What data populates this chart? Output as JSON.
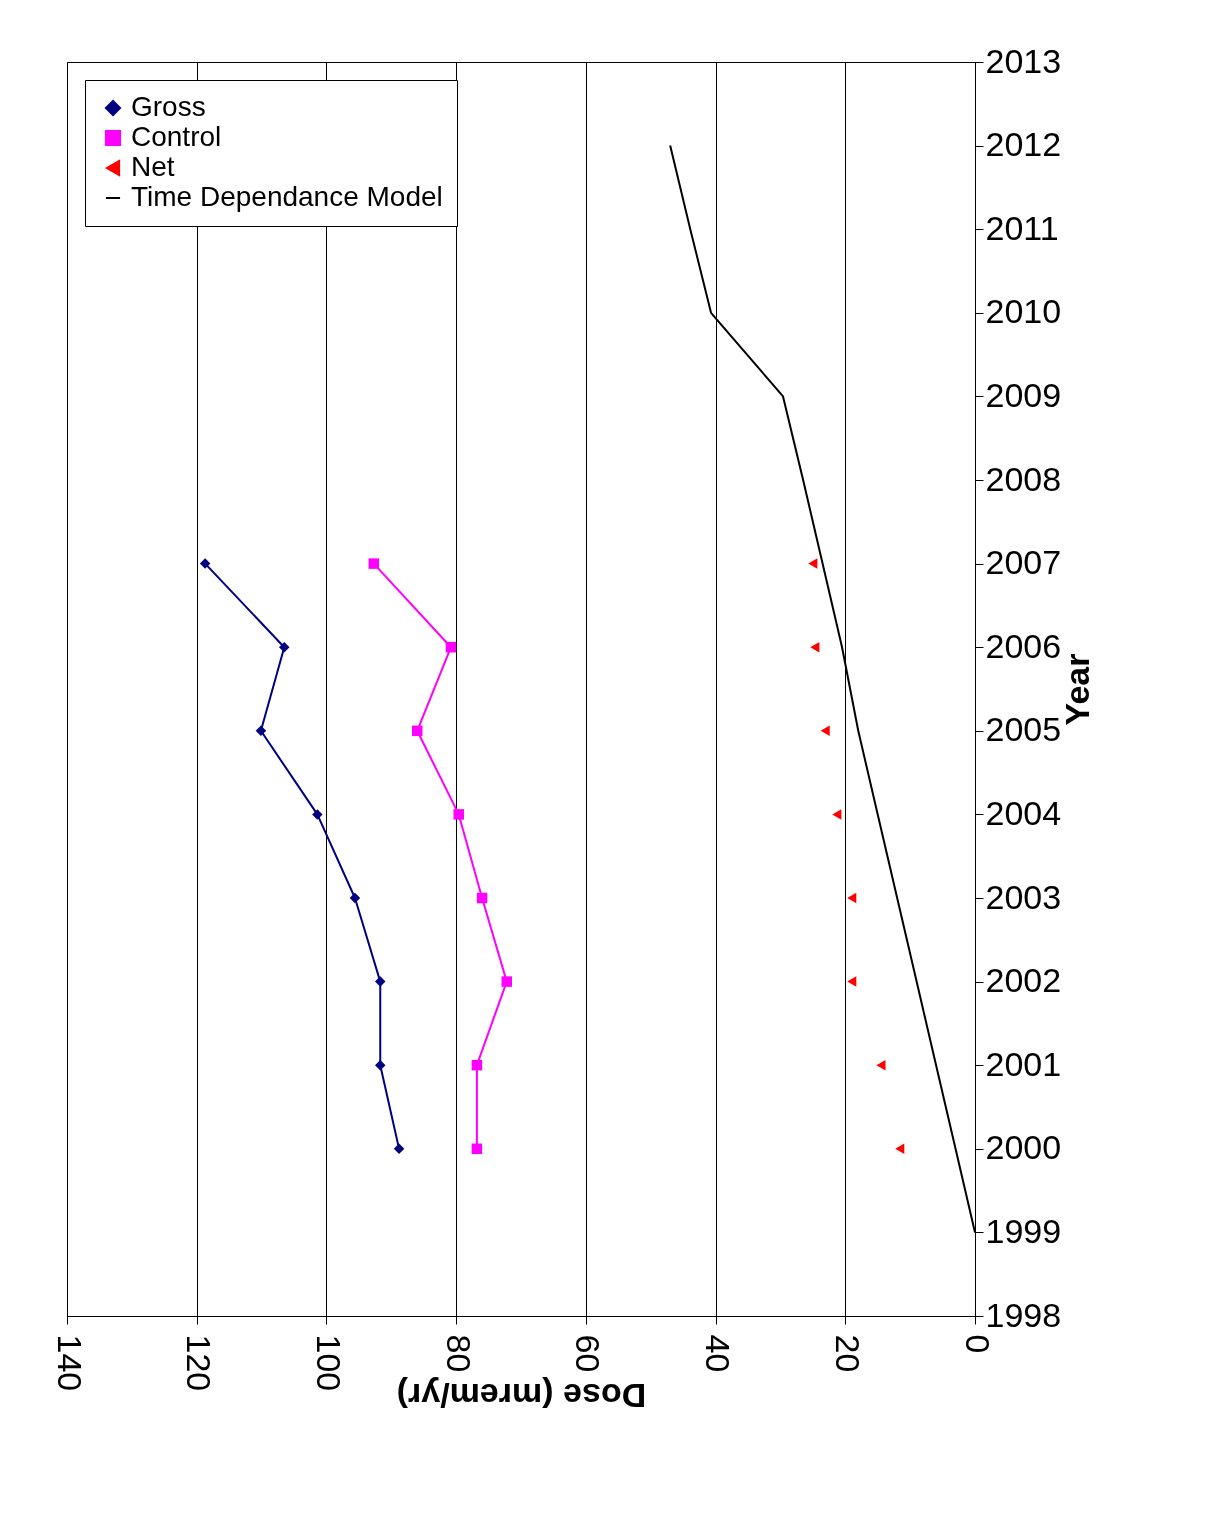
{
  "chart_data": {
    "type": "line",
    "orientation": "horizontal",
    "xlabel": "Dose (mrem/yr)",
    "ylabel": "Year",
    "xlim": [
      140,
      0
    ],
    "xticks": [
      0,
      20,
      40,
      60,
      80,
      100,
      120,
      140
    ],
    "ylim": [
      1998,
      2013
    ],
    "yticks": [
      1998,
      1999,
      2000,
      2001,
      2002,
      2003,
      2004,
      2005,
      2006,
      2007,
      2008,
      2009,
      2010,
      2011,
      2012,
      2013
    ],
    "grid": "x",
    "legend": "top left",
    "series": [
      {
        "name": "Gross",
        "color": "#000080",
        "marker": "diamond",
        "x": [
          2000,
          2001,
          2002,
          2003,
          2004,
          2005,
          2006,
          2007
        ],
        "values": [
          88.8,
          91.7,
          91.7,
          95.6,
          101.4,
          110.1,
          106.5,
          118.7
        ]
      },
      {
        "name": "Control",
        "color": "#ff00ff",
        "marker": "square",
        "x": [
          2000,
          2001,
          2002,
          2003,
          2004,
          2005,
          2006,
          2007
        ],
        "values": [
          76.8,
          76.8,
          72.2,
          76.0,
          79.6,
          86.0,
          80.8,
          92.7
        ]
      },
      {
        "name": "Net",
        "type": "scatter",
        "color": "#ff0000",
        "marker": "triangle",
        "x": [
          2000,
          2001,
          2002,
          2003,
          2004,
          2005,
          2006,
          2007
        ],
        "values": [
          11.6,
          14.5,
          19.0,
          19.0,
          21.3,
          23.1,
          24.7,
          25.0
        ]
      },
      {
        "name": "Time Dependance Model",
        "color": "#000000",
        "marker": "none",
        "x": [
          1999,
          2000,
          2001,
          2002,
          2003,
          2004,
          2005,
          2006,
          2007,
          2008,
          2009,
          2010,
          2011,
          2012
        ],
        "values": [
          0,
          3,
          6,
          9,
          12,
          15,
          18,
          20.5,
          23.5,
          26.5,
          29.6,
          40.7,
          43.9,
          47.0
        ]
      }
    ]
  }
}
